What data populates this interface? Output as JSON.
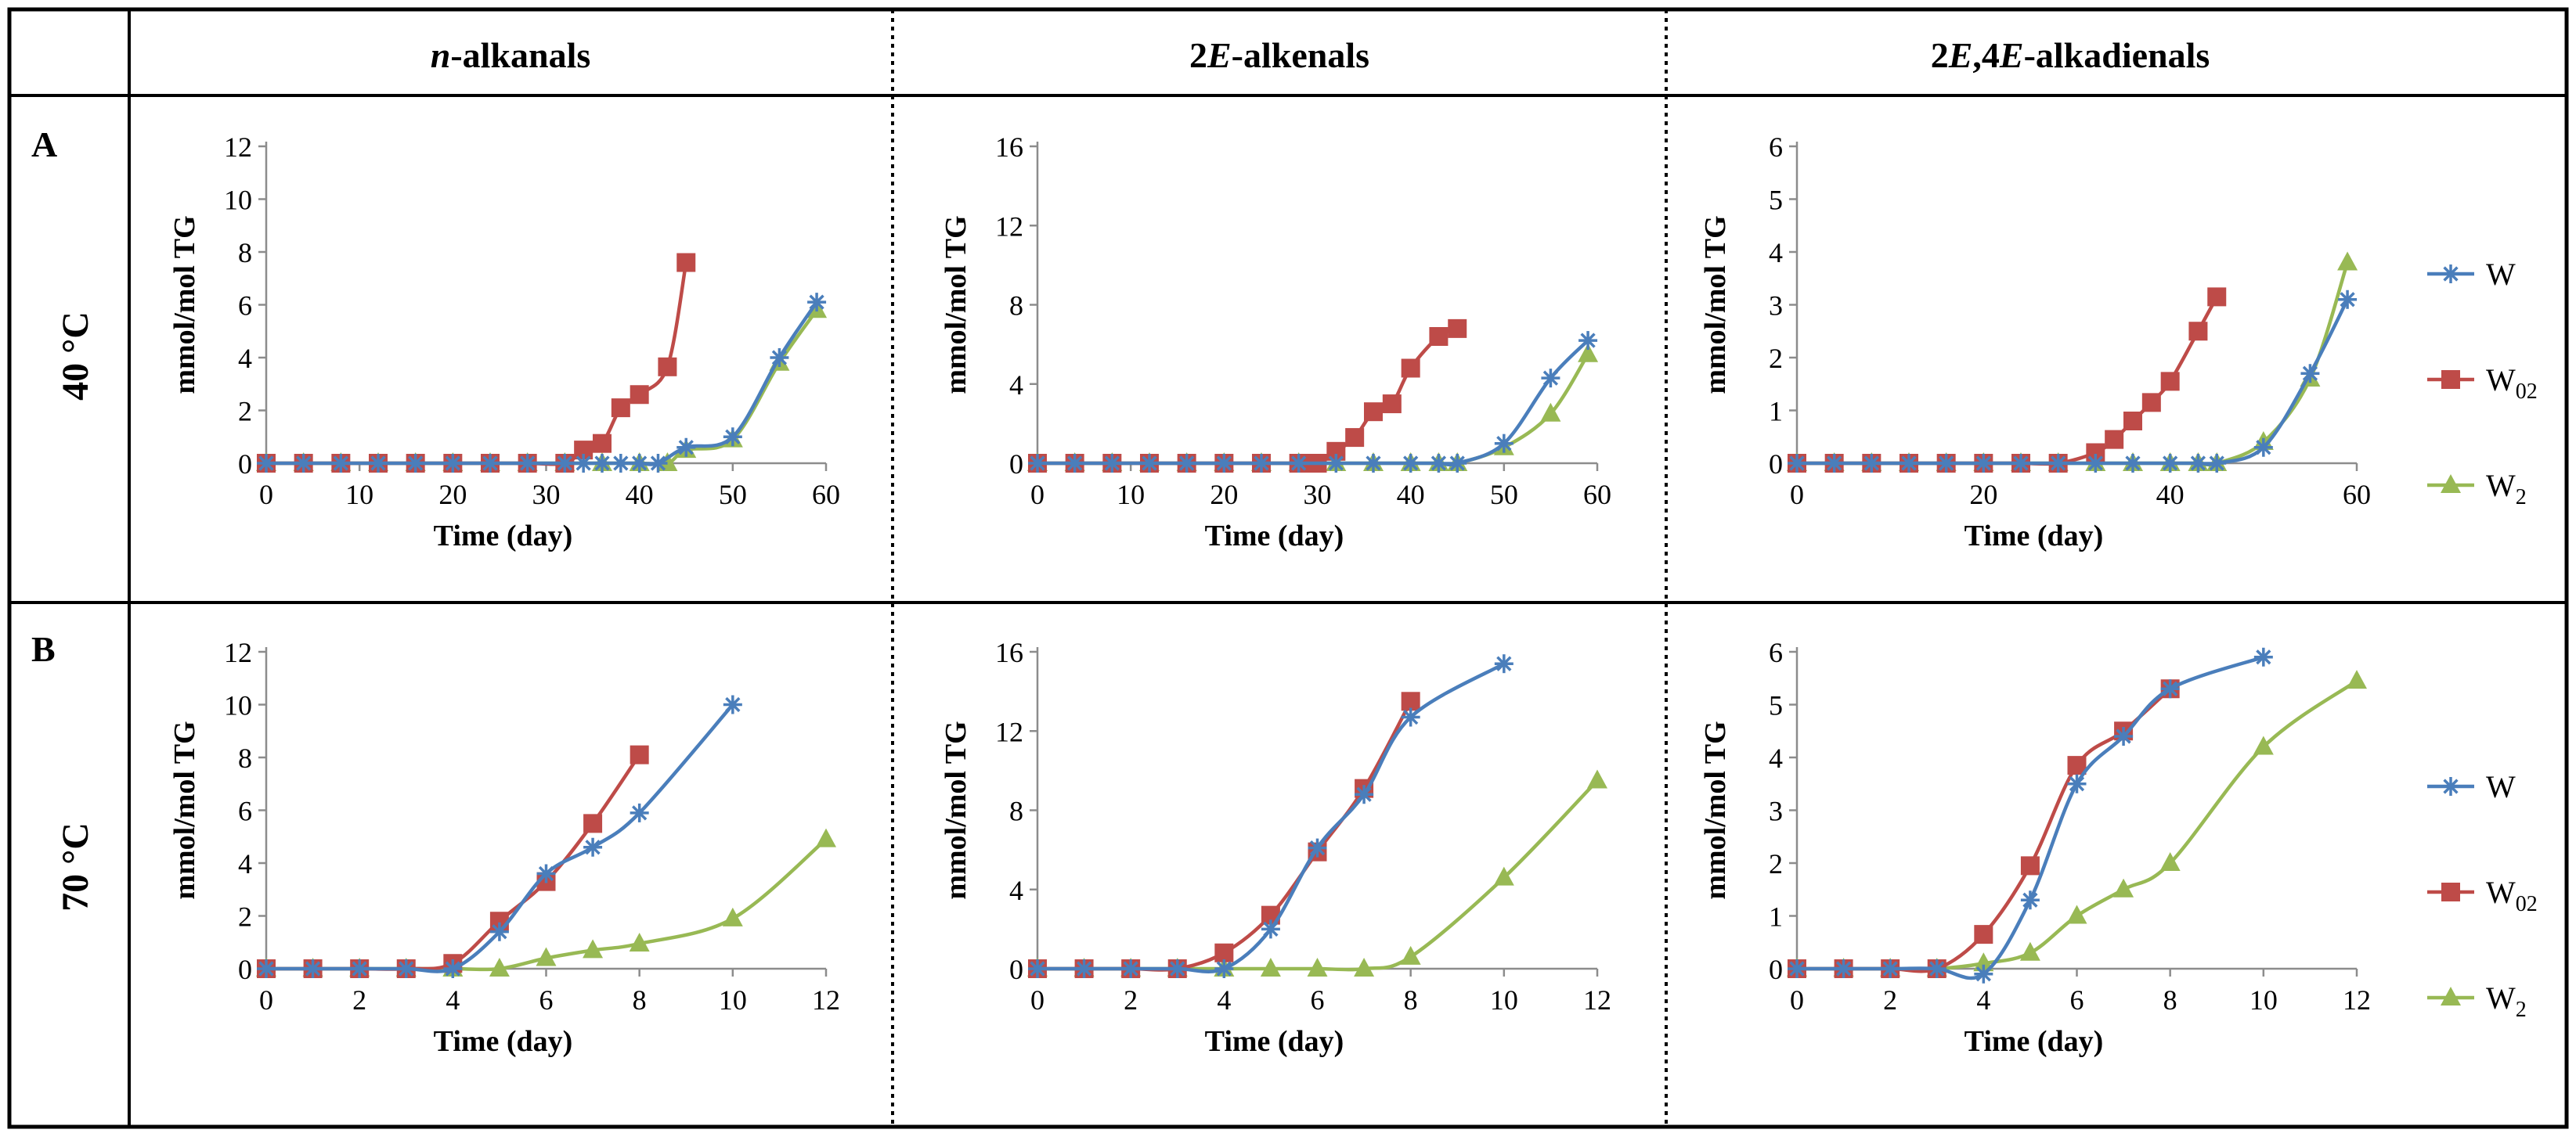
{
  "header": {
    "columns": [
      [
        {
          "t": "n",
          "i": true
        },
        {
          "t": "-alkanals",
          "i": false
        }
      ],
      [
        {
          "t": "2",
          "i": false
        },
        {
          "t": "E",
          "i": true
        },
        {
          "t": "-alkenals",
          "i": false
        }
      ],
      [
        {
          "t": "2",
          "i": false
        },
        {
          "t": "E",
          "i": true
        },
        {
          "t": ",4",
          "i": false
        },
        {
          "t": "E",
          "i": true
        },
        {
          "t": "-alkadienals",
          "i": false
        }
      ]
    ]
  },
  "rows": [
    {
      "label": "A",
      "temp": "40 °C"
    },
    {
      "label": "B",
      "temp": "70 °C"
    }
  ],
  "legend": [
    {
      "name": "W",
      "sub": "",
      "color": "#4a7ebb",
      "marker": "star"
    },
    {
      "name": "W",
      "sub": "02",
      "color": "#be4b48",
      "marker": "square"
    },
    {
      "name": "W",
      "sub": "2",
      "color": "#98b954",
      "marker": "triangle"
    }
  ],
  "chart_data": [
    {
      "type": "line",
      "row": 0,
      "col": 0,
      "title": "n-alkanals",
      "xlabel": "Time (day)",
      "ylabel": "mmol/mol TG",
      "xlim": [
        0,
        60
      ],
      "xticks": [
        0,
        10,
        20,
        30,
        40,
        50,
        60
      ],
      "ylim": [
        0,
        12
      ],
      "yticks": [
        0,
        2,
        4,
        6,
        8,
        10,
        12
      ],
      "series": [
        {
          "name": "W",
          "x": [
            0,
            4,
            8,
            12,
            16,
            20,
            24,
            28,
            32,
            34,
            36,
            38,
            40,
            42,
            45,
            50,
            55,
            59
          ],
          "y": [
            0,
            0,
            0,
            0,
            0,
            0,
            0,
            0,
            0,
            0,
            0,
            0,
            0,
            0,
            0.6,
            1.0,
            4.0,
            6.1
          ]
        },
        {
          "name": "W02",
          "x": [
            0,
            4,
            8,
            12,
            16,
            20,
            24,
            28,
            32,
            34,
            36,
            38,
            40,
            43,
            45
          ],
          "y": [
            0,
            0,
            0,
            0,
            0,
            0,
            0,
            0,
            0,
            0.5,
            0.75,
            2.1,
            2.6,
            3.65,
            7.6
          ]
        },
        {
          "name": "W2",
          "x": [
            0,
            4,
            8,
            12,
            16,
            20,
            24,
            28,
            32,
            36,
            40,
            43,
            45,
            50,
            55,
            59
          ],
          "y": [
            0,
            0,
            0,
            0,
            0,
            0,
            0,
            0,
            0,
            0,
            0,
            0,
            0.5,
            0.9,
            3.8,
            5.8
          ]
        }
      ]
    },
    {
      "type": "line",
      "row": 0,
      "col": 1,
      "title": "2E-alkenals",
      "xlabel": "Time (day)",
      "ylabel": "mmol/mol TG",
      "xlim": [
        0,
        60
      ],
      "xticks": [
        0,
        10,
        20,
        30,
        40,
        50,
        60
      ],
      "ylim": [
        0,
        16
      ],
      "yticks": [
        0,
        4,
        8,
        12,
        16
      ],
      "series": [
        {
          "name": "W",
          "x": [
            0,
            4,
            8,
            12,
            16,
            20,
            24,
            28,
            32,
            36,
            40,
            43,
            45,
            50,
            55,
            59
          ],
          "y": [
            0,
            0,
            0,
            0,
            0,
            0,
            0,
            0,
            0,
            0,
            0,
            0,
            0,
            1.0,
            4.3,
            6.2
          ]
        },
        {
          "name": "W02",
          "x": [
            0,
            4,
            8,
            12,
            16,
            20,
            24,
            28,
            30,
            32,
            34,
            36,
            38,
            40,
            43,
            45
          ],
          "y": [
            0,
            0,
            0,
            0,
            0,
            0,
            0,
            0,
            0,
            0.6,
            1.3,
            2.6,
            3.0,
            4.8,
            6.4,
            6.8
          ]
        },
        {
          "name": "W2",
          "x": [
            0,
            4,
            8,
            12,
            16,
            20,
            24,
            28,
            32,
            36,
            40,
            43,
            45,
            50,
            55,
            59
          ],
          "y": [
            0,
            0,
            0,
            0,
            0,
            0,
            0,
            0,
            0,
            0,
            0,
            0,
            0,
            0.8,
            2.5,
            5.5
          ]
        }
      ]
    },
    {
      "type": "line",
      "row": 0,
      "col": 2,
      "title": "2E,4E-alkadienals",
      "xlabel": "Time (day)",
      "ylabel": "mmol/mol TG",
      "xlim": [
        0,
        60
      ],
      "xticks": [
        0,
        20,
        40,
        60
      ],
      "ylim": [
        0,
        6
      ],
      "yticks": [
        0,
        1,
        2,
        3,
        4,
        5,
        6
      ],
      "series": [
        {
          "name": "W",
          "x": [
            0,
            4,
            8,
            12,
            16,
            20,
            24,
            28,
            32,
            36,
            40,
            43,
            45,
            50,
            55,
            59
          ],
          "y": [
            0,
            0,
            0,
            0,
            0,
            0,
            0,
            0,
            0,
            0,
            0,
            0,
            0,
            0.3,
            1.7,
            3.1
          ]
        },
        {
          "name": "W02",
          "x": [
            0,
            4,
            8,
            12,
            16,
            20,
            24,
            28,
            32,
            34,
            36,
            38,
            40,
            43,
            45
          ],
          "y": [
            0,
            0,
            0,
            0,
            0,
            0,
            0,
            0,
            0.2,
            0.45,
            0.8,
            1.15,
            1.55,
            2.5,
            3.15
          ]
        },
        {
          "name": "W2",
          "x": [
            0,
            4,
            8,
            12,
            16,
            20,
            24,
            28,
            32,
            36,
            40,
            43,
            45,
            50,
            55,
            59
          ],
          "y": [
            0,
            0,
            0,
            0,
            0,
            0,
            0,
            0,
            0,
            0,
            0,
            0,
            0,
            0.4,
            1.6,
            3.8
          ]
        }
      ]
    },
    {
      "type": "line",
      "row": 1,
      "col": 0,
      "title": "n-alkanals",
      "xlabel": "Time (day)",
      "ylabel": "mmol/mol TG",
      "xlim": [
        0,
        12
      ],
      "xticks": [
        0,
        2,
        4,
        6,
        8,
        10,
        12
      ],
      "ylim": [
        0,
        12
      ],
      "yticks": [
        0,
        2,
        4,
        6,
        8,
        10,
        12
      ],
      "series": [
        {
          "name": "W",
          "x": [
            0,
            1,
            2,
            3,
            4,
            5,
            6,
            7,
            8,
            10
          ],
          "y": [
            0,
            0,
            0,
            0,
            0,
            1.4,
            3.6,
            4.6,
            5.9,
            10.0
          ]
        },
        {
          "name": "W02",
          "x": [
            0,
            1,
            2,
            3,
            4,
            5,
            6,
            7,
            8
          ],
          "y": [
            0,
            0,
            0,
            0,
            0.2,
            1.8,
            3.3,
            5.5,
            8.1
          ]
        },
        {
          "name": "W2",
          "x": [
            0,
            1,
            2,
            3,
            4,
            5,
            6,
            7,
            8,
            10,
            12
          ],
          "y": [
            0,
            0,
            0,
            0,
            0,
            0,
            0.4,
            0.7,
            0.95,
            1.9,
            4.9
          ]
        }
      ]
    },
    {
      "type": "line",
      "row": 1,
      "col": 1,
      "title": "2E-alkenals",
      "xlabel": "Time (day)",
      "ylabel": "mmol/mol TG",
      "xlim": [
        0,
        12
      ],
      "xticks": [
        0,
        2,
        4,
        6,
        8,
        10,
        12
      ],
      "ylim": [
        0,
        16
      ],
      "yticks": [
        0,
        4,
        8,
        12,
        16
      ],
      "series": [
        {
          "name": "W",
          "x": [
            0,
            1,
            2,
            3,
            4,
            5,
            6,
            7,
            8,
            10
          ],
          "y": [
            0,
            0,
            0,
            0,
            0,
            2.0,
            6.1,
            8.8,
            12.7,
            15.4
          ]
        },
        {
          "name": "W02",
          "x": [
            0,
            1,
            2,
            3,
            4,
            5,
            6,
            7,
            8
          ],
          "y": [
            0,
            0,
            0,
            0,
            0.8,
            2.7,
            5.9,
            9.1,
            13.5
          ]
        },
        {
          "name": "W2",
          "x": [
            0,
            1,
            2,
            3,
            4,
            5,
            6,
            7,
            8,
            10,
            12
          ],
          "y": [
            0,
            0,
            0,
            0,
            0,
            0,
            0,
            0,
            0.6,
            4.6,
            9.5
          ]
        }
      ]
    },
    {
      "type": "line",
      "row": 1,
      "col": 2,
      "title": "2E,4E-alkadienals",
      "xlabel": "Time (day)",
      "ylabel": "mmol/mol TG",
      "xlim": [
        0,
        12
      ],
      "xticks": [
        0,
        2,
        4,
        6,
        8,
        10,
        12
      ],
      "ylim": [
        0,
        6
      ],
      "yticks": [
        0,
        1,
        2,
        3,
        4,
        5,
        6
      ],
      "series": [
        {
          "name": "W",
          "x": [
            0,
            1,
            2,
            3,
            4,
            5,
            6,
            7,
            8,
            10
          ],
          "y": [
            0,
            0,
            0,
            0,
            -0.1,
            1.3,
            3.5,
            4.4,
            5.3,
            5.9
          ]
        },
        {
          "name": "W02",
          "x": [
            0,
            1,
            2,
            3,
            4,
            5,
            6,
            7,
            8
          ],
          "y": [
            0,
            0,
            0,
            0,
            0.65,
            1.95,
            3.85,
            4.5,
            5.3
          ]
        },
        {
          "name": "W2",
          "x": [
            0,
            1,
            2,
            3,
            4,
            5,
            6,
            7,
            8,
            10,
            12
          ],
          "y": [
            0,
            0,
            0,
            0,
            0.1,
            0.3,
            1.0,
            1.5,
            2.0,
            4.2,
            5.45
          ]
        }
      ]
    }
  ]
}
